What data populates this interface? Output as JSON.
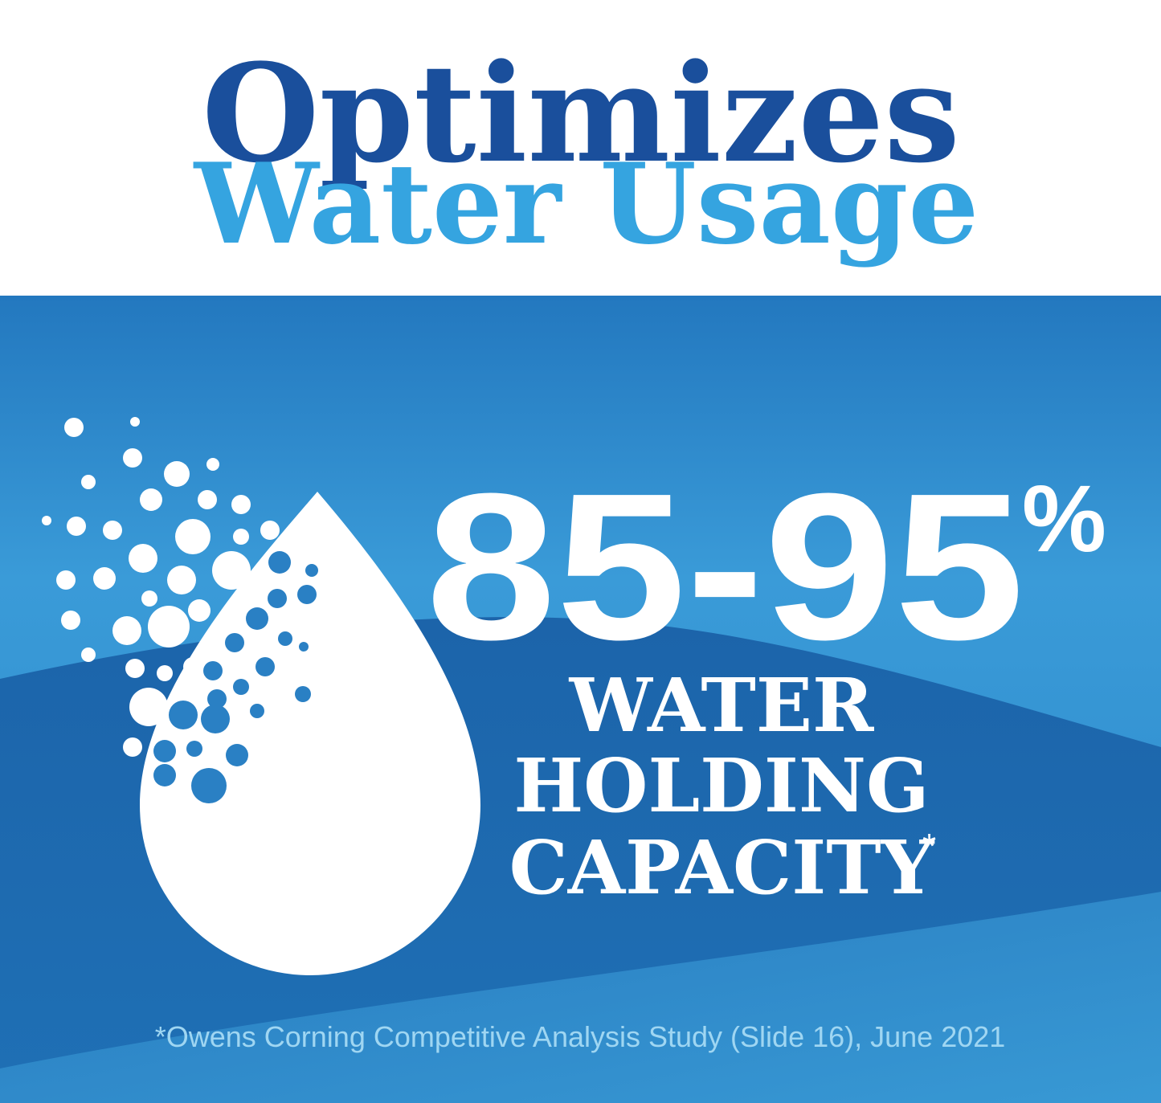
{
  "header": {
    "line1": "Optimizes",
    "line2": "Water Usage"
  },
  "stat": {
    "range": "85-95",
    "unit": "%",
    "caption": [
      "WATER",
      "HOLDING",
      "CAPACITY"
    ],
    "caption_mark": "*"
  },
  "footnote": "*Owens Corning Competitive Analysis Study (Slide 16), June 2021"
}
